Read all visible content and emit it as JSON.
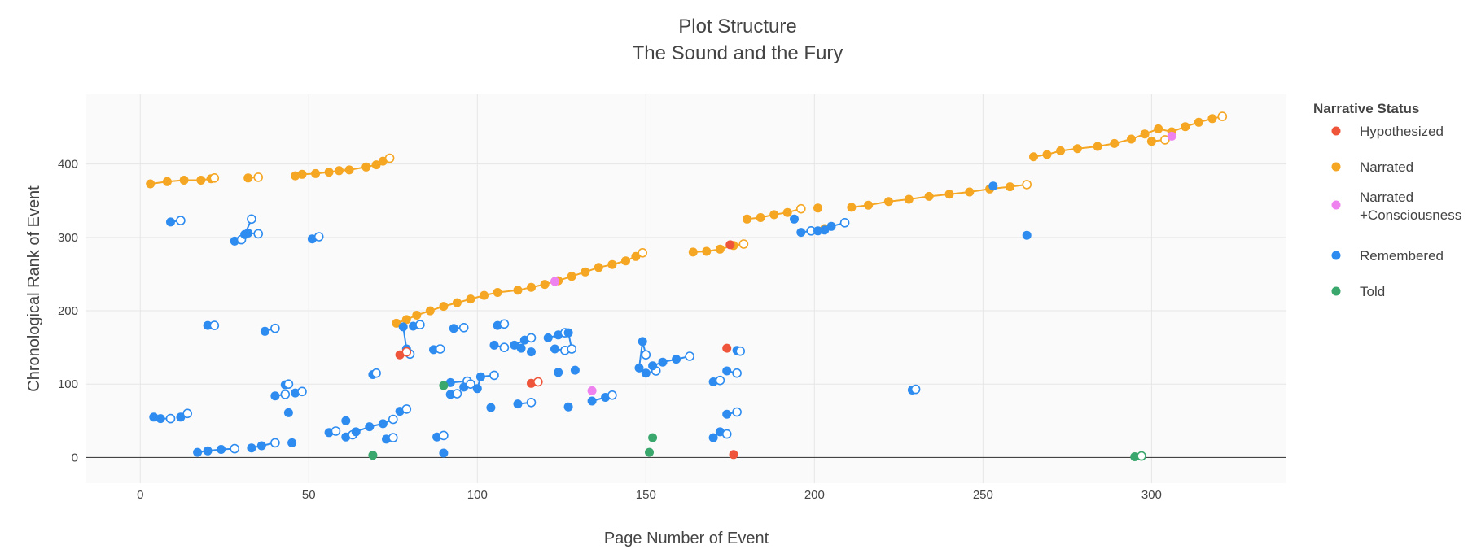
{
  "chart_data": {
    "type": "scatter",
    "title": "Plot Structure",
    "subtitle": "The Sound and the Fury",
    "xlabel": "Page Number of Event",
    "ylabel": "Chronological Rank of Event",
    "xlim": [
      -16,
      340
    ],
    "ylim": [
      -35,
      495
    ],
    "x_ticks": [
      0,
      50,
      100,
      150,
      200,
      250,
      300
    ],
    "y_ticks": [
      0,
      100,
      200,
      300,
      400
    ],
    "grid": true,
    "legend": {
      "title": "Narrative Status",
      "placement": "right",
      "entries": [
        "Hypothesized",
        "Narrated",
        "Narrated\n+Consciousness",
        "Remembered",
        "Told"
      ]
    },
    "colors": {
      "Hypothesized": "#ef553b",
      "Narrated": "#f5a623",
      "Narrated +Consciousness": "#ee82ee",
      "Remembered": "#2e8cf0",
      "Told": "#3aa76d"
    },
    "series": [
      {
        "name": "Narrated",
        "segments": [
          [
            [
              3,
              373
            ],
            [
              8,
              376
            ],
            [
              13,
              378
            ],
            [
              18,
              378
            ],
            [
              21,
              380
            ],
            [
              22,
              381
            ]
          ],
          [
            [
              32,
              381
            ],
            [
              35,
              382
            ]
          ],
          [
            [
              46,
              384
            ],
            [
              48,
              386
            ],
            [
              52,
              387
            ],
            [
              56,
              389
            ],
            [
              59,
              391
            ],
            [
              62,
              392
            ],
            [
              67,
              396
            ],
            [
              70,
              399
            ],
            [
              72,
              404
            ],
            [
              74,
              408
            ]
          ],
          [
            [
              76,
              183
            ],
            [
              79,
              188
            ],
            [
              82,
              194
            ],
            [
              86,
              200
            ],
            [
              90,
              206
            ],
            [
              94,
              211
            ],
            [
              98,
              216
            ],
            [
              102,
              221
            ],
            [
              106,
              225
            ],
            [
              112,
              228
            ],
            [
              116,
              232
            ],
            [
              120,
              236
            ],
            [
              124,
              241
            ],
            [
              128,
              247
            ],
            [
              132,
              253
            ],
            [
              136,
              259
            ],
            [
              140,
              263
            ],
            [
              144,
              268
            ],
            [
              147,
              274
            ],
            [
              149,
              279
            ]
          ],
          [
            [
              164,
              280
            ],
            [
              168,
              281
            ],
            [
              172,
              284
            ],
            [
              176,
              289
            ],
            [
              179,
              291
            ]
          ],
          [
            [
              180,
              325
            ],
            [
              184,
              327
            ],
            [
              188,
              331
            ],
            [
              192,
              334
            ],
            [
              196,
              339
            ]
          ],
          [
            [
              201,
              340
            ]
          ],
          [
            [
              203,
              312
            ]
          ],
          [
            [
              211,
              341
            ],
            [
              216,
              344
            ],
            [
              222,
              349
            ],
            [
              228,
              352
            ],
            [
              234,
              356
            ],
            [
              240,
              359
            ],
            [
              246,
              362
            ],
            [
              252,
              366
            ],
            [
              258,
              369
            ],
            [
              263,
              372
            ]
          ],
          [
            [
              265,
              410
            ],
            [
              269,
              413
            ],
            [
              273,
              418
            ],
            [
              278,
              421
            ],
            [
              284,
              424
            ],
            [
              289,
              428
            ],
            [
              294,
              434
            ],
            [
              298,
              441
            ],
            [
              302,
              448
            ],
            [
              306,
              444
            ],
            [
              310,
              451
            ],
            [
              314,
              457
            ],
            [
              318,
              462
            ],
            [
              321,
              465
            ]
          ],
          [
            [
              300,
              431
            ],
            [
              304,
              433
            ]
          ]
        ]
      },
      {
        "name": "Remembered",
        "segments": [
          [
            [
              4,
              55
            ],
            [
              6,
              53
            ],
            [
              9,
              53
            ]
          ],
          [
            [
              12,
              55
            ],
            [
              14,
              60
            ]
          ],
          [
            [
              17,
              7
            ],
            [
              20,
              9
            ],
            [
              24,
              11
            ],
            [
              28,
              12
            ]
          ],
          [
            [
              9,
              321
            ],
            [
              12,
              323
            ]
          ],
          [
            [
              20,
              180
            ],
            [
              22,
              180
            ]
          ],
          [
            [
              28,
              295
            ],
            [
              30,
              297
            ]
          ],
          [
            [
              31,
              304
            ],
            [
              33,
              325
            ]
          ],
          [
            [
              32,
              306
            ],
            [
              35,
              305
            ]
          ],
          [
            [
              33,
              13
            ],
            [
              36,
              16
            ],
            [
              40,
              20
            ]
          ],
          [
            [
              37,
              172
            ],
            [
              40,
              176
            ]
          ],
          [
            [
              40,
              84
            ],
            [
              43,
              86
            ]
          ],
          [
            [
              43,
              99
            ],
            [
              44,
              100
            ]
          ],
          [
            [
              44,
              61
            ]
          ],
          [
            [
              45,
              20
            ]
          ],
          [
            [
              46,
              88
            ],
            [
              48,
              90
            ]
          ],
          [
            [
              51,
              298
            ],
            [
              53,
              301
            ]
          ],
          [
            [
              56,
              34
            ],
            [
              58,
              36
            ]
          ],
          [
            [
              61,
              50
            ]
          ],
          [
            [
              61,
              28
            ],
            [
              63,
              31
            ]
          ],
          [
            [
              64,
              35
            ],
            [
              68,
              42
            ],
            [
              72,
              46
            ],
            [
              75,
              52
            ]
          ],
          [
            [
              69,
              113
            ],
            [
              70,
              115
            ]
          ],
          [
            [
              73,
              25
            ],
            [
              75,
              27
            ]
          ],
          [
            [
              77,
              63
            ],
            [
              79,
              66
            ]
          ],
          [
            [
              78,
              178
            ],
            [
              79,
              148
            ],
            [
              80,
              141
            ]
          ],
          [
            [
              81,
              179
            ],
            [
              83,
              181
            ]
          ],
          [
            [
              87,
              147
            ],
            [
              89,
              148
            ]
          ],
          [
            [
              88,
              28
            ],
            [
              90,
              30
            ]
          ],
          [
            [
              90,
              6
            ]
          ],
          [
            [
              92,
              86
            ],
            [
              94,
              87
            ]
          ],
          [
            [
              92,
              102
            ],
            [
              97,
              104
            ]
          ],
          [
            [
              93,
              176
            ],
            [
              96,
              177
            ]
          ],
          [
            [
              96,
              96
            ],
            [
              98,
              100
            ]
          ],
          [
            [
              100,
              94
            ],
            [
              101,
              110
            ],
            [
              105,
              112
            ]
          ],
          [
            [
              104,
              68
            ]
          ],
          [
            [
              105,
              153
            ],
            [
              108,
              150
            ]
          ],
          [
            [
              106,
              180
            ],
            [
              108,
              182
            ]
          ],
          [
            [
              111,
              153
            ],
            [
              114,
              160
            ],
            [
              116,
              163
            ]
          ],
          [
            [
              112,
              73
            ],
            [
              116,
              75
            ]
          ],
          [
            [
              113,
              149
            ]
          ],
          [
            [
              116,
              144
            ]
          ],
          [
            [
              121,
              163
            ],
            [
              124,
              167
            ],
            [
              126,
              170
            ]
          ],
          [
            [
              123,
              148
            ],
            [
              126,
              146
            ]
          ],
          [
            [
              124,
              116
            ]
          ],
          [
            [
              127,
              69
            ]
          ],
          [
            [
              127,
              170
            ],
            [
              128,
              148
            ]
          ],
          [
            [
              129,
              119
            ]
          ],
          [
            [
              134,
              77
            ],
            [
              138,
              82
            ],
            [
              140,
              85
            ]
          ],
          [
            [
              148,
              122
            ],
            [
              149,
              158
            ],
            [
              150,
              140
            ]
          ],
          [
            [
              150,
              115
            ],
            [
              153,
              118
            ]
          ],
          [
            [
              152,
              125
            ],
            [
              155,
              130
            ],
            [
              159,
              134
            ],
            [
              163,
              138
            ]
          ],
          [
            [
              170,
              103
            ],
            [
              172,
              105
            ]
          ],
          [
            [
              170,
              27
            ],
            [
              172,
              35
            ],
            [
              174,
              32
            ]
          ],
          [
            [
              174,
              118
            ],
            [
              177,
              115
            ]
          ],
          [
            [
              174,
              59
            ],
            [
              177,
              62
            ]
          ],
          [
            [
              177,
              146
            ],
            [
              178,
              145
            ]
          ],
          [
            [
              194,
              325
            ]
          ],
          [
            [
              196,
              307
            ],
            [
              199,
              309
            ]
          ],
          [
            [
              201,
              309
            ]
          ],
          [
            [
              203,
              310
            ],
            [
              205,
              315
            ],
            [
              209,
              320
            ]
          ],
          [
            [
              229,
              92
            ],
            [
              230,
              93
            ]
          ],
          [
            [
              253,
              370
            ]
          ],
          [
            [
              263,
              303
            ]
          ]
        ]
      },
      {
        "name": "Hypothesized",
        "segments": [
          [
            [
              77,
              140
            ],
            [
              79,
              144
            ]
          ],
          [
            [
              116,
              101
            ],
            [
              118,
              103
            ]
          ],
          [
            [
              174,
              149
            ]
          ],
          [
            [
              175,
              290
            ]
          ],
          [
            [
              176,
              4
            ]
          ]
        ]
      },
      {
        "name": "Narrated +Consciousness",
        "segments": [
          [
            [
              123,
              240
            ]
          ],
          [
            [
              134,
              91
            ]
          ],
          [
            [
              306,
              438
            ]
          ]
        ]
      },
      {
        "name": "Told",
        "segments": [
          [
            [
              69,
              3
            ]
          ],
          [
            [
              90,
              98
            ]
          ],
          [
            [
              151,
              7
            ]
          ],
          [
            [
              152,
              27
            ]
          ],
          [
            [
              295,
              1
            ],
            [
              297,
              2
            ]
          ]
        ]
      }
    ]
  }
}
